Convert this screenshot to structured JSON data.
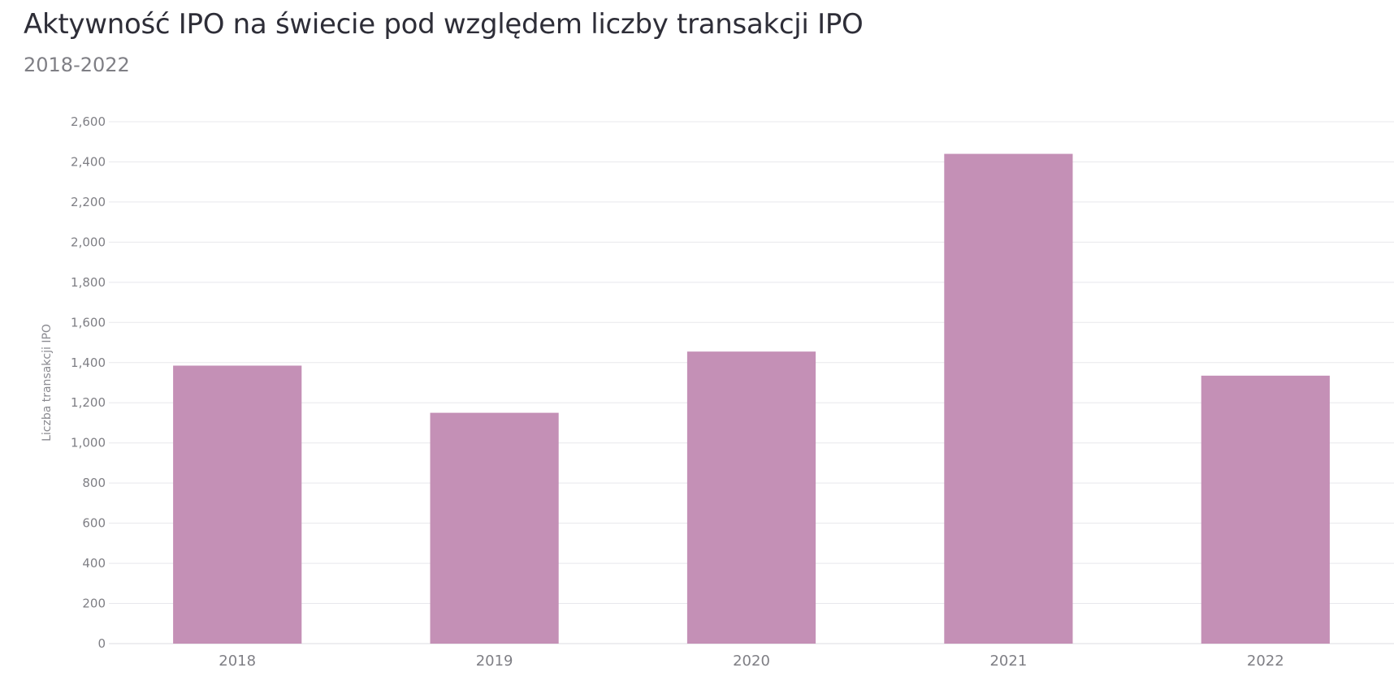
{
  "chart_data": {
    "type": "bar",
    "title": "Aktywność IPO na świecie pod względem liczby transakcji IPO",
    "subtitle": "2018-2022",
    "xlabel": "",
    "ylabel": "Liczba transakcji IPO",
    "categories": [
      "2018",
      "2019",
      "2020",
      "2021",
      "2022"
    ],
    "series": [
      {
        "values": [
          1385,
          1150,
          1455,
          2440,
          1335
        ]
      }
    ],
    "ylim": [
      0,
      2600
    ],
    "yticks": [
      0,
      200,
      400,
      600,
      800,
      1000,
      1200,
      1400,
      1600,
      1800,
      2000,
      2200,
      2400,
      2600
    ],
    "ytick_labels": [
      "0",
      "200",
      "400",
      "600",
      "800",
      "1,000",
      "1,200",
      "1,400",
      "1,600",
      "1,800",
      "2,000",
      "2,200",
      "2,400",
      "2,600"
    ],
    "grid": true,
    "legend": "none",
    "colors": {
      "bar": "#c490b6",
      "grid": "#e8e8ec",
      "axis_text": "#7f7f85",
      "title": "#2e2e38"
    }
  }
}
